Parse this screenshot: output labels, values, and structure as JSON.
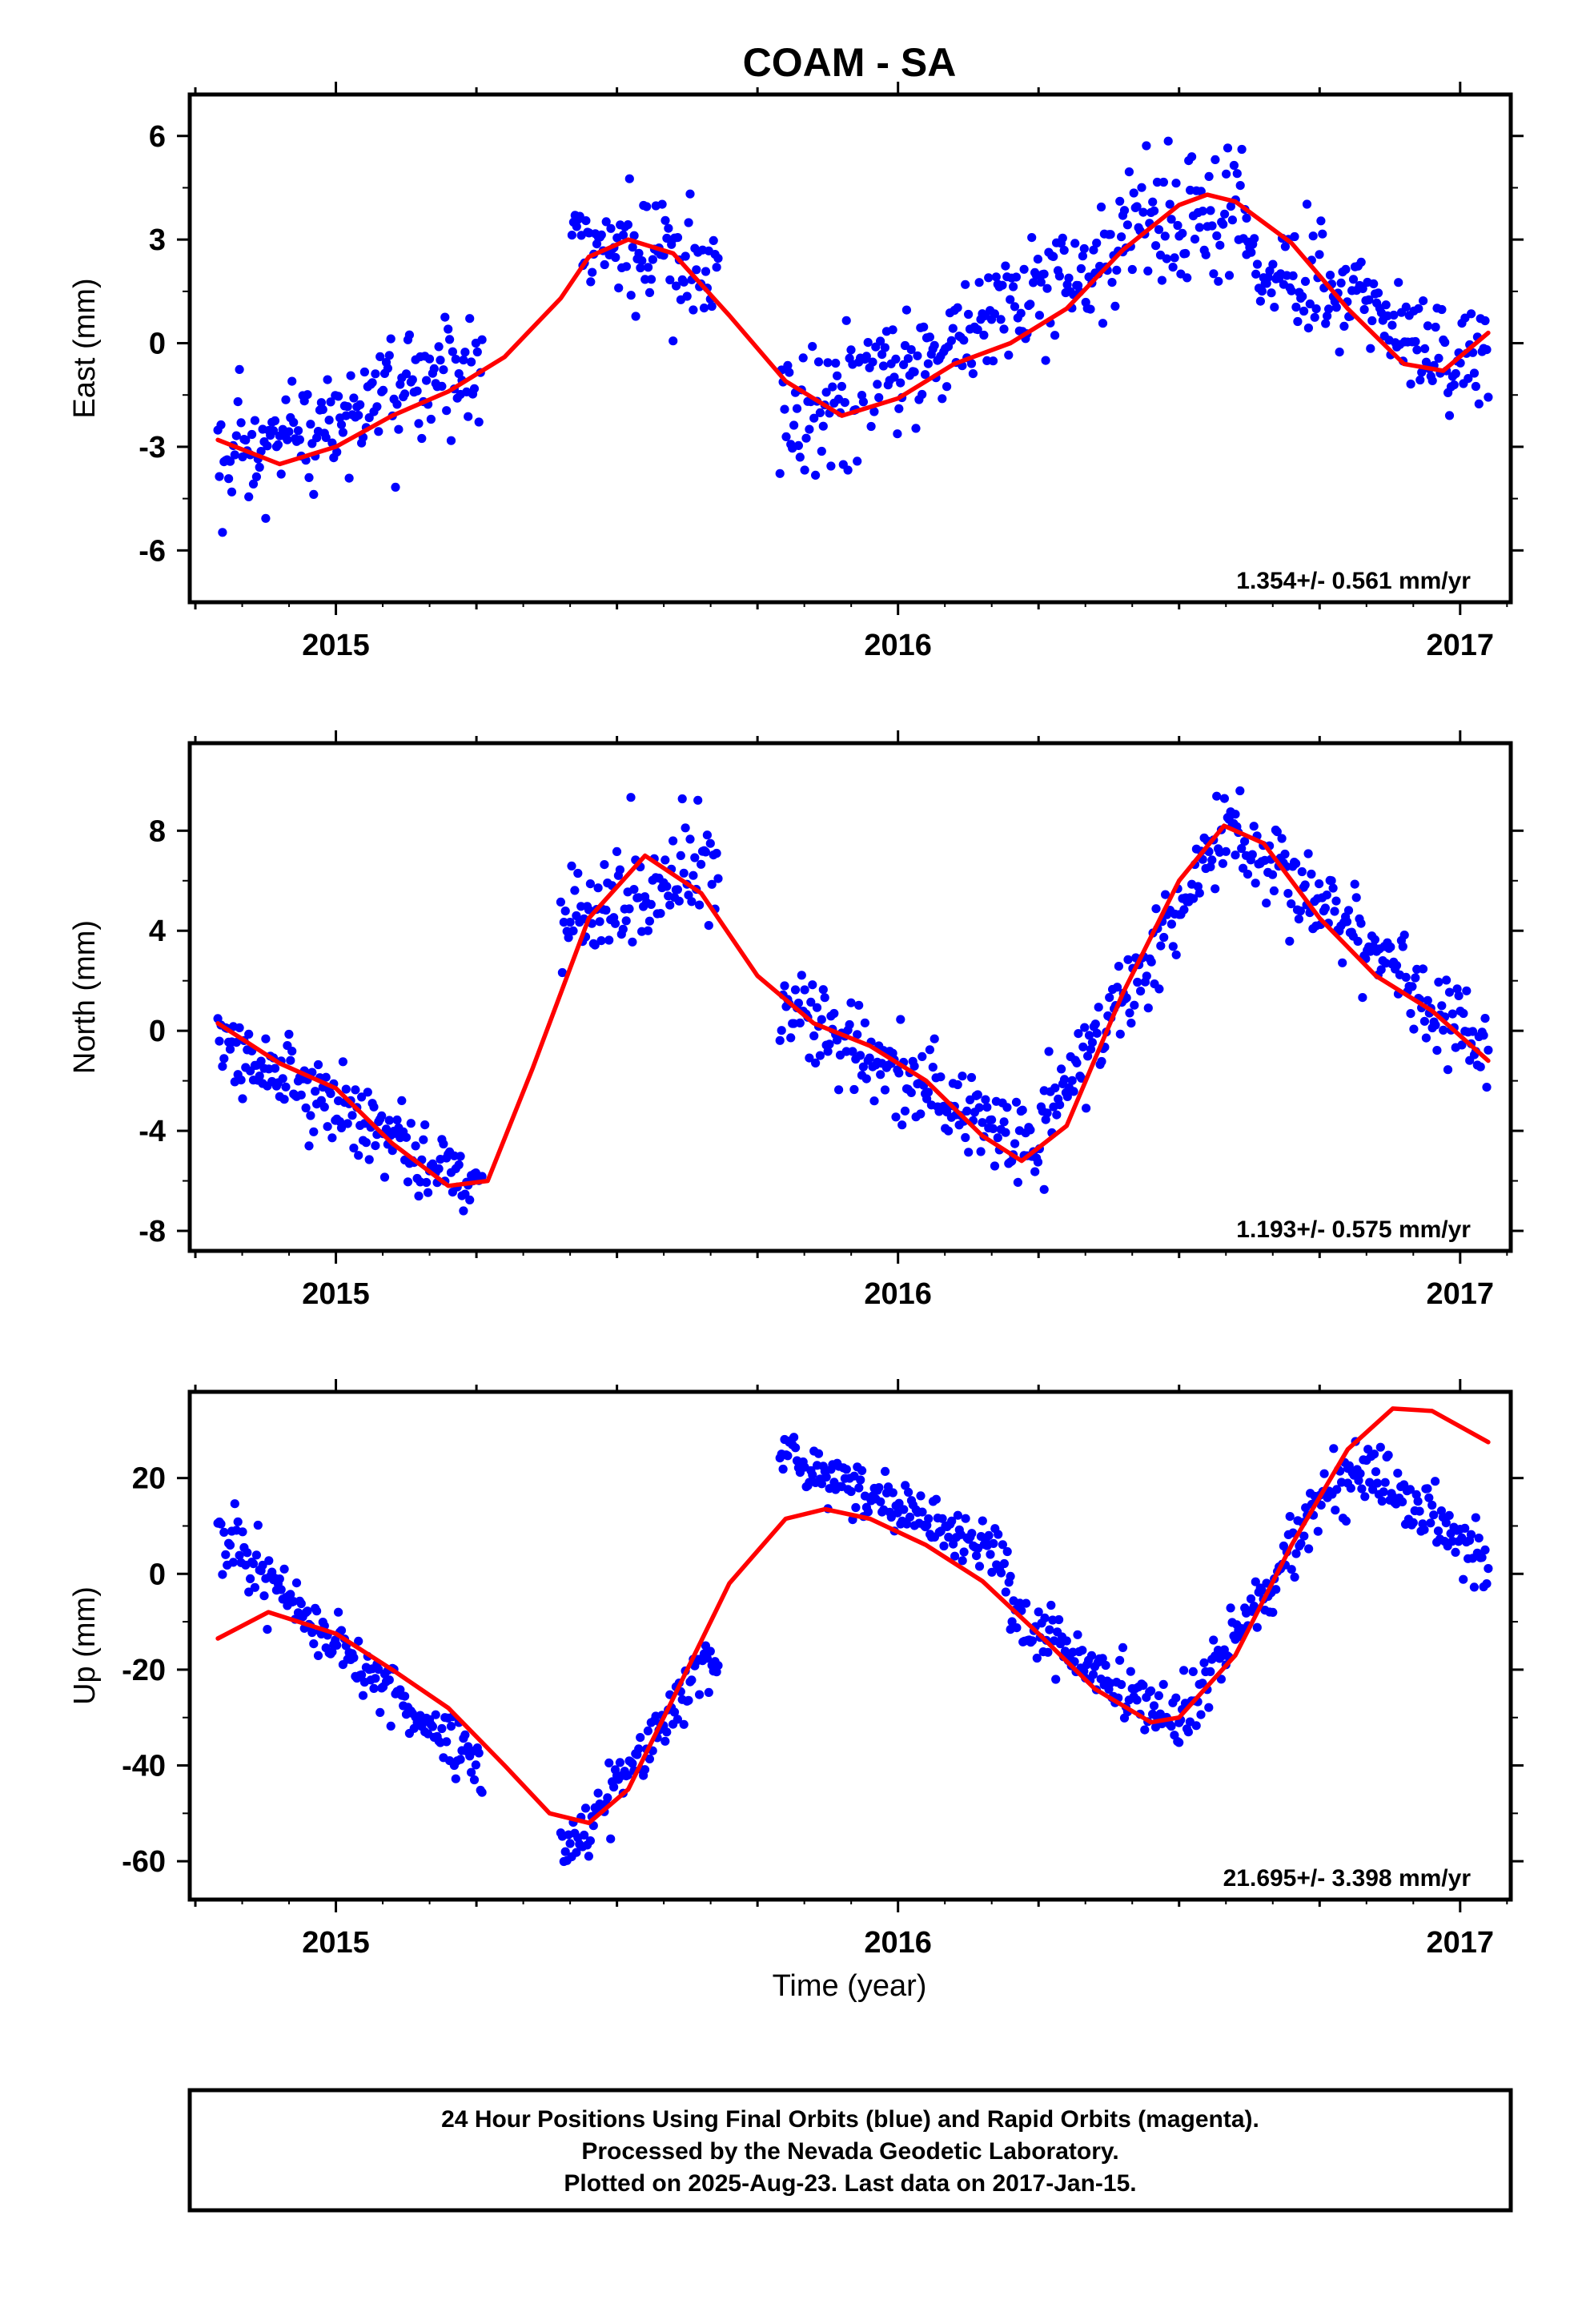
{
  "chart_data": {
    "type": "scatter",
    "title": "COAM - SA",
    "xlabel": "Time (year)",
    "xlim": [
      2014.74,
      2017.09
    ],
    "x_tick_labels": [
      "2015",
      "2016",
      "2017"
    ],
    "caption": [
      "24 Hour Positions Using Final Orbits (blue) and Rapid Orbits (magenta).",
      "Processed by the Nevada Geodetic Laboratory.",
      "Plotted on 2025-Aug-23. Last data on 2017-Jan-15."
    ],
    "colors": {
      "points": "#0000ff",
      "fit": "#ff0000",
      "frame": "#000000"
    },
    "panels": [
      {
        "id": "east",
        "ylabel": "East (mm)",
        "ylim": [
          -7.5,
          7.2
        ],
        "yticks": [
          -6,
          -3,
          0,
          3,
          6
        ],
        "y_tick_labels": [
          "-6",
          "-3",
          "0",
          "3",
          "6"
        ],
        "rate": "1.354+/- 0.561 mm/yr",
        "fit": [
          [
            2014.79,
            -2.8
          ],
          [
            2014.9,
            -3.5
          ],
          [
            2015.0,
            -3.0
          ],
          [
            2015.1,
            -2.1
          ],
          [
            2015.2,
            -1.4
          ],
          [
            2015.3,
            -0.4
          ],
          [
            2015.4,
            1.3
          ],
          [
            2015.45,
            2.5
          ],
          [
            2015.52,
            3.0
          ],
          [
            2015.6,
            2.6
          ],
          [
            2015.7,
            0.8
          ],
          [
            2015.8,
            -1.1
          ],
          [
            2015.9,
            -2.1
          ],
          [
            2016.0,
            -1.6
          ],
          [
            2016.1,
            -0.6
          ],
          [
            2016.2,
            0.0
          ],
          [
            2016.3,
            1.0
          ],
          [
            2016.4,
            2.7
          ],
          [
            2016.5,
            4.0
          ],
          [
            2016.55,
            4.3
          ],
          [
            2016.6,
            4.1
          ],
          [
            2016.7,
            2.9
          ],
          [
            2016.8,
            1.0
          ],
          [
            2016.9,
            -0.6
          ],
          [
            2016.97,
            -0.8
          ],
          [
            2017.05,
            0.3
          ]
        ],
        "segments": [
          {
            "x0": 2014.79,
            "x1": 2015.26,
            "trend": [
              -3.8,
              -0.4
            ],
            "noise": 1.2
          },
          {
            "x0": 2015.42,
            "x1": 2015.68,
            "trend": [
              3.2,
              1.8
            ],
            "noise": 1.3
          },
          {
            "x0": 2015.79,
            "x1": 2016.4,
            "trend": [
              -2.6,
              2.8
            ],
            "noise": 1.2
          },
          {
            "x0": 2016.4,
            "x1": 2016.62,
            "trend": [
              3.6,
              3.8
            ],
            "noise": 1.3
          },
          {
            "x0": 2016.62,
            "x1": 2017.05,
            "trend": [
              2.5,
              -0.6
            ],
            "noise": 1.1
          }
        ]
      },
      {
        "id": "north",
        "ylabel": "North (mm)",
        "ylim": [
          -8.8,
          11.5
        ],
        "yticks": [
          -8,
          -4,
          0,
          4,
          8
        ],
        "y_tick_labels": [
          "-8",
          "-4",
          "0",
          "4",
          "8"
        ],
        "rate": "1.193+/- 0.575 mm/yr",
        "fit": [
          [
            2014.79,
            0.3
          ],
          [
            2014.9,
            -1.3
          ],
          [
            2015.0,
            -2.3
          ],
          [
            2015.1,
            -4.5
          ],
          [
            2015.2,
            -6.2
          ],
          [
            2015.27,
            -6.0
          ],
          [
            2015.35,
            -1.5
          ],
          [
            2015.45,
            4.5
          ],
          [
            2015.55,
            7.0
          ],
          [
            2015.65,
            5.5
          ],
          [
            2015.75,
            2.2
          ],
          [
            2015.85,
            0.3
          ],
          [
            2015.95,
            -0.6
          ],
          [
            2016.05,
            -2.0
          ],
          [
            2016.15,
            -4.2
          ],
          [
            2016.22,
            -5.2
          ],
          [
            2016.3,
            -3.8
          ],
          [
            2016.4,
            1.5
          ],
          [
            2016.5,
            6.0
          ],
          [
            2016.58,
            8.2
          ],
          [
            2016.65,
            7.5
          ],
          [
            2016.75,
            4.5
          ],
          [
            2016.85,
            2.2
          ],
          [
            2016.95,
            0.8
          ],
          [
            2017.05,
            -1.2
          ]
        ],
        "segments": [
          {
            "x0": 2014.79,
            "x1": 2015.26,
            "trend": [
              -0.6,
              -6.2
            ],
            "noise": 1.0
          },
          {
            "x0": 2015.4,
            "x1": 2015.68,
            "trend": [
              4.5,
              6.5
            ],
            "noise": 1.5
          },
          {
            "x0": 2015.79,
            "x1": 2016.26,
            "trend": [
              1.0,
              -5.0
            ],
            "noise": 1.2
          },
          {
            "x0": 2016.26,
            "x1": 2016.6,
            "trend": [
              -3.5,
              8.2
            ],
            "noise": 1.2
          },
          {
            "x0": 2016.6,
            "x1": 2017.05,
            "trend": [
              7.8,
              -0.6
            ],
            "noise": 1.2
          }
        ]
      },
      {
        "id": "up",
        "ylabel": "Up (mm)",
        "ylim": [
          -68,
          38
        ],
        "yticks": [
          -60,
          -40,
          -20,
          0,
          20
        ],
        "y_tick_labels": [
          "-60",
          "-40",
          "-20",
          "0",
          "20"
        ],
        "rate": "21.695+/- 3.398 mm/yr",
        "fit": [
          [
            2014.79,
            -13.5
          ],
          [
            2014.88,
            -8.0
          ],
          [
            2015.0,
            -12.5
          ],
          [
            2015.1,
            -20.0
          ],
          [
            2015.2,
            -28.0
          ],
          [
            2015.3,
            -40.0
          ],
          [
            2015.38,
            -50.0
          ],
          [
            2015.45,
            -52.0
          ],
          [
            2015.52,
            -45.0
          ],
          [
            2015.6,
            -26.0
          ],
          [
            2015.7,
            -2.0
          ],
          [
            2015.8,
            11.5
          ],
          [
            2015.87,
            13.5
          ],
          [
            2015.95,
            11.5
          ],
          [
            2016.05,
            6.0
          ],
          [
            2016.15,
            -1.5
          ],
          [
            2016.25,
            -12.5
          ],
          [
            2016.35,
            -24.0
          ],
          [
            2016.45,
            -31.0
          ],
          [
            2016.5,
            -30.0
          ],
          [
            2016.6,
            -17.0
          ],
          [
            2016.7,
            6.0
          ],
          [
            2016.8,
            26.0
          ],
          [
            2016.88,
            34.5
          ],
          [
            2016.95,
            34.0
          ],
          [
            2017.05,
            27.5
          ]
        ],
        "segments": [
          {
            "x0": 2014.79,
            "x1": 2015.26,
            "trend": [
              8.0,
              -42.0
            ],
            "noise": 4.5
          },
          {
            "x0": 2015.4,
            "x1": 2015.68,
            "trend": [
              -60.0,
              -15.0
            ],
            "noise": 4.5
          },
          {
            "x0": 2015.79,
            "x1": 2016.2,
            "trend": [
              26.0,
              2.0
            ],
            "noise": 4.0
          },
          {
            "x0": 2016.2,
            "x1": 2016.5,
            "trend": [
              -8.0,
              -33.0
            ],
            "noise": 4.5
          },
          {
            "x0": 2016.5,
            "x1": 2016.8,
            "trend": [
              -30.0,
              22.0
            ],
            "noise": 4.5
          },
          {
            "x0": 2016.8,
            "x1": 2017.05,
            "trend": [
              24.0,
              2.0
            ],
            "noise": 4.0
          }
        ]
      }
    ]
  }
}
